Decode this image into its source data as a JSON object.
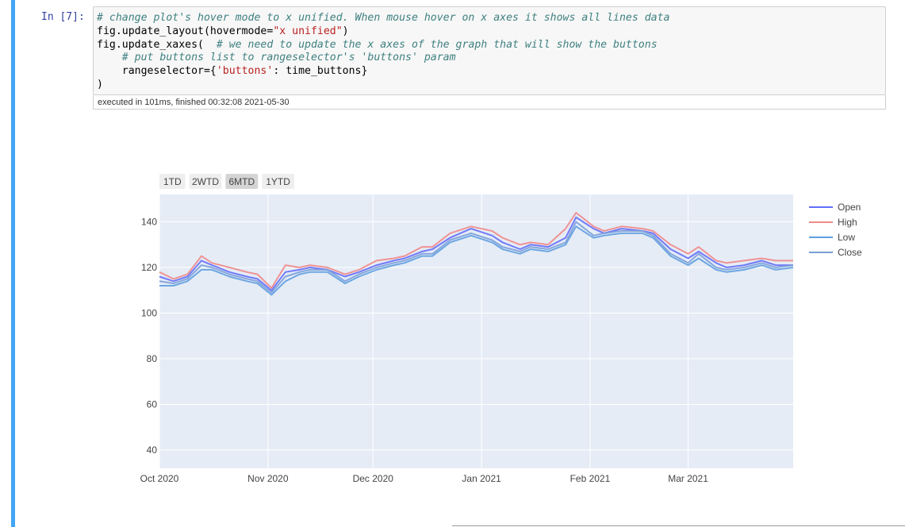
{
  "cell": {
    "prompt": "In [7]:",
    "code_lines": [
      [
        {
          "t": "comment",
          "v": "# change plot's hover mode to x unified. When mouse hover on x axes it shows all lines data"
        }
      ],
      [
        {
          "t": "var",
          "v": "fig.update_layout(hovermode="
        },
        {
          "t": "str",
          "v": "\"x unified\""
        },
        {
          "t": "var",
          "v": ")"
        }
      ],
      [
        {
          "t": "var",
          "v": "fig.update_xaxes(  "
        },
        {
          "t": "comment",
          "v": "# we need to update the x axes of the graph that will show the buttons"
        }
      ],
      [
        {
          "t": "var",
          "v": "    "
        },
        {
          "t": "comment",
          "v": "# put buttons list to rangeselector's 'buttons' param"
        }
      ],
      [
        {
          "t": "var",
          "v": "    rangeselector={"
        },
        {
          "t": "str",
          "v": "'buttons'"
        },
        {
          "t": "var",
          "v": ": time_buttons}"
        }
      ],
      [
        {
          "t": "var",
          "v": ")"
        }
      ]
    ],
    "execution_info": "executed in 101ms, finished 00:32:08 2021-05-30"
  },
  "range_buttons": [
    {
      "label": "1TD",
      "active": false
    },
    {
      "label": "2WTD",
      "active": false
    },
    {
      "label": "6MTD",
      "active": true
    },
    {
      "label": "1YTD",
      "active": false
    }
  ],
  "colors": {
    "plot_bg": "#e5ecf6",
    "grid": "#ffffff",
    "button_bg": "#eeeeee",
    "button_active_bg": "#d4d4d4",
    "cell_bar": "#42a5f5"
  },
  "chart_data": {
    "type": "line",
    "title": "",
    "xlabel": "",
    "ylabel": "",
    "x_range": [
      "2020-10-01",
      "2021-03-31"
    ],
    "ylim": [
      32,
      152
    ],
    "y_ticks": [
      40,
      60,
      80,
      100,
      120,
      140
    ],
    "x_ticks": [
      {
        "date": "2020-10-01",
        "label": "Oct 2020"
      },
      {
        "date": "2020-11-01",
        "label": "Nov 2020"
      },
      {
        "date": "2020-12-01",
        "label": "Dec 2020"
      },
      {
        "date": "2021-01-01",
        "label": "Jan 2021"
      },
      {
        "date": "2021-02-01",
        "label": "Feb 2021"
      },
      {
        "date": "2021-03-01",
        "label": "Mar 2021"
      }
    ],
    "legend_position": "top-right",
    "x": [
      "2020-10-01",
      "2020-10-05",
      "2020-10-09",
      "2020-10-13",
      "2020-10-16",
      "2020-10-21",
      "2020-10-26",
      "2020-10-29",
      "2020-11-02",
      "2020-11-06",
      "2020-11-10",
      "2020-11-13",
      "2020-11-18",
      "2020-11-23",
      "2020-11-27",
      "2020-12-02",
      "2020-12-07",
      "2020-12-10",
      "2020-12-15",
      "2020-12-18",
      "2020-12-23",
      "2020-12-29",
      "2021-01-04",
      "2021-01-07",
      "2021-01-12",
      "2021-01-15",
      "2021-01-20",
      "2021-01-25",
      "2021-01-28",
      "2021-02-02",
      "2021-02-05",
      "2021-02-10",
      "2021-02-16",
      "2021-02-19",
      "2021-02-24",
      "2021-03-01",
      "2021-03-04",
      "2021-03-09",
      "2021-03-12",
      "2021-03-17",
      "2021-03-22",
      "2021-03-26",
      "2021-03-31"
    ],
    "series": [
      {
        "name": "Open",
        "color": "#636efa",
        "values": [
          116,
          114,
          116,
          123,
          121,
          118,
          116,
          115,
          110,
          118,
          119,
          120,
          119,
          116,
          118,
          121,
          123,
          124,
          127,
          128,
          133,
          137,
          134,
          131,
          128,
          130,
          129,
          133,
          142,
          137,
          135,
          137,
          136,
          135,
          128,
          124,
          127,
          122,
          120,
          121,
          123,
          121,
          121
        ]
      },
      {
        "name": "High",
        "color": "#ef8a8a",
        "values": [
          118,
          115,
          117,
          125,
          122,
          120,
          118,
          117,
          111,
          121,
          120,
          121,
          120,
          117,
          119,
          123,
          124,
          125,
          129,
          129,
          135,
          138,
          136,
          133,
          130,
          131,
          130,
          137,
          144,
          138,
          136,
          138,
          137,
          136,
          130,
          126,
          129,
          123,
          122,
          123,
          124,
          123,
          123
        ]
      },
      {
        "name": "Low",
        "color": "#5f9fe0",
        "values": [
          112,
          112,
          114,
          119,
          119,
          116,
          114,
          113,
          108,
          114,
          117,
          118,
          118,
          113,
          116,
          119,
          121,
          122,
          125,
          125,
          131,
          134,
          131,
          128,
          126,
          128,
          127,
          130,
          138,
          133,
          134,
          135,
          135,
          133,
          125,
          121,
          124,
          119,
          118,
          119,
          121,
          119,
          120
        ]
      },
      {
        "name": "Close",
        "color": "#7a9ed8",
        "values": [
          114,
          113,
          115,
          121,
          120,
          117,
          115,
          114,
          109,
          116,
          118,
          119,
          119,
          114,
          117,
          120,
          122,
          123,
          126,
          126,
          132,
          135,
          132,
          129,
          127,
          129,
          128,
          131,
          140,
          134,
          135,
          136,
          136,
          134,
          126,
          122,
          126,
          120,
          119,
          120,
          122,
          120,
          121
        ]
      }
    ]
  }
}
